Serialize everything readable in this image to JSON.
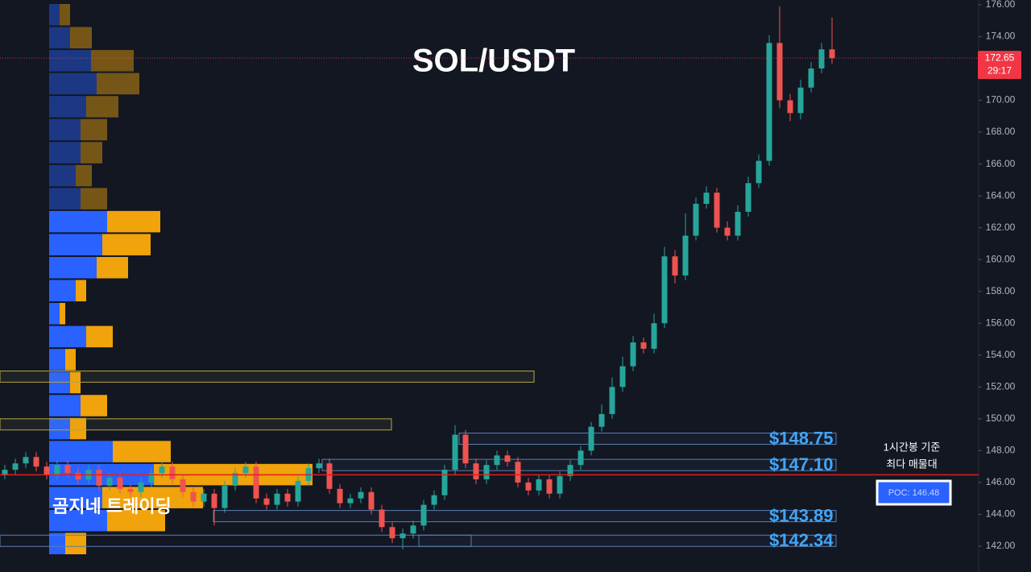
{
  "chart_data": {
    "type": "candlestick",
    "title": "SOL/USDT",
    "watermark": "곰지네 트레이딩",
    "open": [
      146.5,
      146.8,
      147.2,
      147.6,
      147.0,
      146.5,
      147.1,
      146.6,
      146.2,
      146.8,
      145.8,
      146.3,
      145.6,
      145.4,
      146.0,
      146.6,
      147.0,
      146.2,
      145.4,
      144.8,
      145.3,
      144.4,
      145.8,
      146.6,
      147.0,
      145.0,
      144.6,
      145.3,
      144.8,
      146.1,
      146.9,
      147.2,
      145.6,
      144.7,
      145.0,
      145.4,
      144.3,
      143.2,
      142.5,
      142.8,
      143.3,
      144.6,
      145.2,
      146.8,
      149.0,
      147.2,
      146.2,
      147.1,
      147.7,
      147.3,
      146.0,
      145.5,
      146.2,
      145.3,
      146.4,
      147.1,
      148.0,
      149.5,
      150.3,
      152.0,
      153.3,
      154.8,
      154.4,
      156.0,
      160.2,
      159.0,
      161.5,
      163.5,
      164.2,
      162.0,
      161.5,
      163.0,
      164.8,
      166.2,
      173.6,
      170.0,
      169.2,
      170.8,
      172.0,
      173.2
    ],
    "high": [
      147.1,
      147.5,
      147.9,
      147.9,
      147.3,
      147.4,
      147.4,
      146.9,
      147.1,
      147.1,
      146.6,
      146.6,
      145.9,
      146.3,
      146.9,
      147.3,
      147.3,
      146.5,
      145.7,
      145.6,
      145.6,
      146.1,
      146.9,
      147.3,
      147.3,
      145.3,
      145.6,
      145.6,
      146.4,
      147.2,
      147.5,
      147.5,
      145.9,
      145.3,
      145.7,
      145.7,
      144.6,
      143.5,
      143.1,
      143.6,
      144.9,
      145.5,
      147.1,
      149.6,
      149.3,
      147.5,
      147.4,
      148.0,
      148.0,
      147.6,
      146.3,
      146.5,
      146.5,
      146.7,
      147.4,
      148.3,
      149.8,
      150.9,
      152.6,
      153.9,
      155.2,
      155.1,
      156.6,
      160.8,
      160.6,
      162.9,
      163.9,
      164.6,
      164.5,
      162.4,
      163.4,
      165.2,
      166.6,
      174.1,
      175.9,
      170.4,
      171.3,
      172.4,
      173.6,
      175.2
    ],
    "low": [
      146.2,
      146.5,
      146.9,
      146.7,
      146.2,
      146.2,
      146.3,
      145.9,
      145.9,
      145.5,
      145.5,
      145.3,
      145.1,
      145.1,
      145.7,
      146.3,
      145.9,
      145.1,
      144.5,
      144.5,
      143.3,
      144.1,
      145.5,
      146.3,
      144.7,
      144.3,
      144.3,
      144.5,
      144.5,
      145.8,
      146.6,
      145.3,
      144.4,
      144.4,
      144.7,
      144.0,
      142.9,
      142.2,
      141.8,
      142.5,
      143.0,
      144.3,
      144.9,
      146.5,
      146.9,
      145.9,
      145.9,
      146.8,
      147.0,
      145.7,
      145.2,
      145.2,
      145.0,
      145.0,
      146.1,
      146.8,
      147.7,
      149.2,
      150.0,
      151.7,
      153.0,
      154.1,
      154.1,
      155.7,
      158.5,
      158.7,
      161.2,
      163.2,
      161.7,
      161.2,
      161.2,
      162.7,
      164.5,
      165.9,
      169.5,
      168.7,
      168.8,
      170.5,
      171.7,
      172.3
    ],
    "close": [
      146.8,
      147.2,
      147.6,
      147.0,
      146.5,
      147.1,
      146.6,
      146.2,
      146.8,
      145.8,
      146.3,
      145.6,
      145.4,
      146.0,
      146.6,
      147.0,
      146.2,
      145.4,
      144.8,
      145.3,
      144.4,
      145.8,
      146.6,
      147.0,
      145.0,
      144.6,
      145.3,
      144.8,
      146.1,
      146.9,
      147.2,
      145.6,
      144.7,
      145.0,
      145.4,
      144.3,
      143.2,
      142.5,
      142.8,
      143.3,
      144.6,
      145.2,
      146.8,
      149.0,
      147.2,
      146.2,
      147.1,
      147.7,
      147.3,
      146.0,
      145.5,
      146.2,
      145.3,
      146.4,
      147.1,
      148.0,
      149.5,
      150.3,
      152.0,
      153.3,
      154.8,
      154.4,
      156.0,
      160.2,
      159.0,
      161.5,
      163.5,
      164.2,
      162.0,
      161.5,
      163.0,
      164.8,
      166.2,
      173.6,
      170.0,
      169.2,
      170.8,
      172.0,
      173.2,
      172.65
    ],
    "up_color": "#26a69a",
    "down_color": "#ef5350",
    "ylim": [
      140.38,
      176.3
    ],
    "yticks": [
      {
        "value": 142,
        "label": "142.00"
      },
      {
        "value": 144,
        "label": "144.00"
      },
      {
        "value": 146,
        "label": "146.00"
      },
      {
        "value": 148,
        "label": "148.00"
      },
      {
        "value": 150,
        "label": "150.00"
      },
      {
        "value": 152,
        "label": "152.00"
      },
      {
        "value": 154,
        "label": "154.00"
      },
      {
        "value": 156,
        "label": "156.00"
      },
      {
        "value": 158,
        "label": "158.00"
      },
      {
        "value": 160,
        "label": "160.00"
      },
      {
        "value": 162,
        "label": "162.00"
      },
      {
        "value": 164,
        "label": "164.00"
      },
      {
        "value": 166,
        "label": "166.00"
      },
      {
        "value": 168,
        "label": "168.00"
      },
      {
        "value": 170,
        "label": "170.00"
      },
      {
        "value": 172,
        "label": "172.00"
      },
      {
        "value": 174,
        "label": "174.00"
      },
      {
        "value": 176,
        "label": "176.00"
      }
    ],
    "levels": [
      {
        "value": 148.75,
        "label": "$148.75"
      },
      {
        "value": 147.1,
        "label": "$147.10"
      },
      {
        "value": 143.89,
        "label": "$143.89"
      },
      {
        "value": 142.34,
        "label": "$142.34"
      }
    ],
    "zones": [
      {
        "top": 153.0,
        "bottom": 152.3
      },
      {
        "top": 150.0,
        "bottom": 149.3
      }
    ],
    "poc": {
      "value": 146.48,
      "label": "POC: 146.48"
    },
    "annotation": [
      "1시간봉 기준",
      "최다 매물대"
    ],
    "last_price": 172.65,
    "countdown": "29:17",
    "volume_profile": {
      "buy": [
        13,
        26,
        52,
        59,
        46,
        39,
        39,
        33,
        39,
        72,
        66,
        59,
        33,
        13,
        46,
        20,
        26,
        39,
        26,
        79,
        130,
        66,
        72,
        20
      ],
      "sell": [
        13,
        27,
        53,
        53,
        40,
        33,
        27,
        20,
        33,
        66,
        60,
        39,
        13,
        7,
        33,
        13,
        13,
        33,
        20,
        72,
        197,
        125,
        72,
        26
      ],
      "buy_color": "#2962ff",
      "sell_color": "#f0a30a"
    }
  }
}
